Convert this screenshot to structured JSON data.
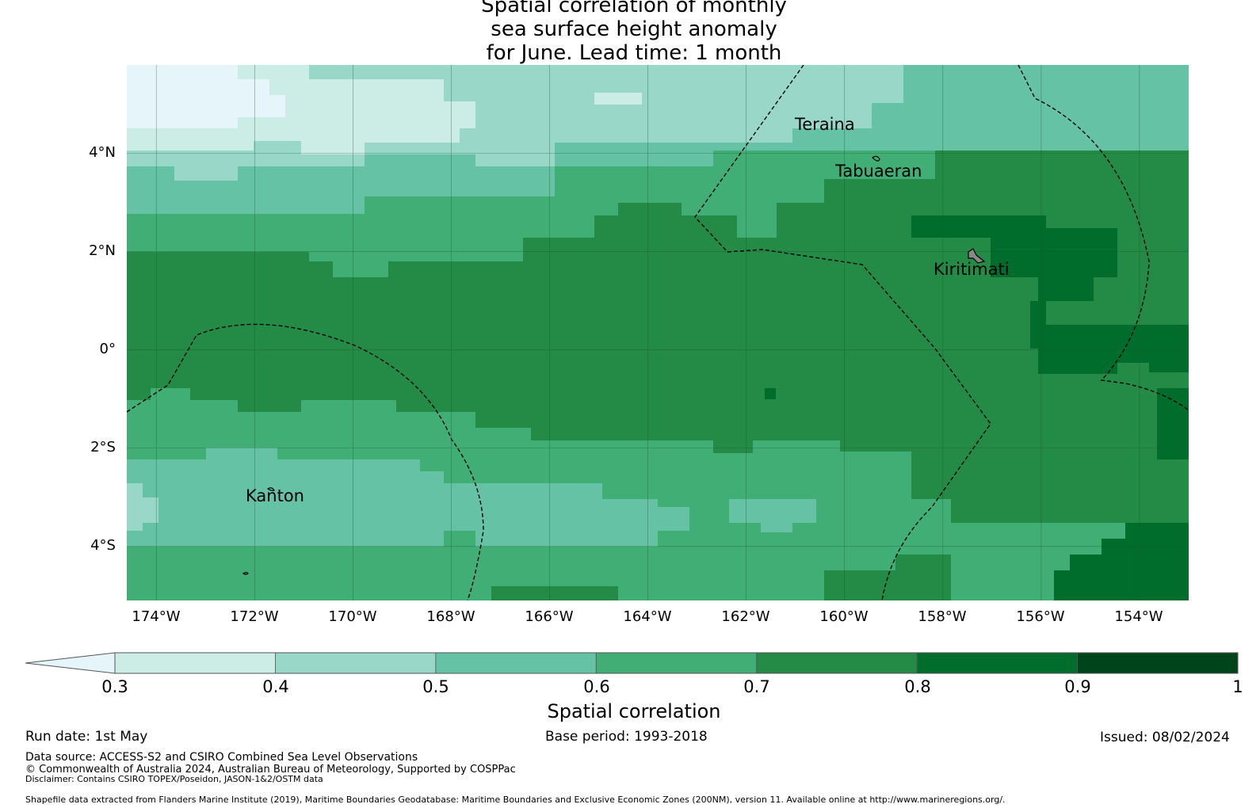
{
  "title": {
    "line1": "Spatial correlation of monthly",
    "line2": "sea surface height anomaly",
    "line3": "for June. Lead time: 1 month"
  },
  "map": {
    "lon_range": [
      -174.6,
      -153.0
    ],
    "lat_range": [
      -5.1,
      5.8
    ],
    "lat_ticks": [
      "4°N",
      "2°N",
      "0°",
      "2°S",
      "4°S"
    ],
    "lon_ticks": [
      "174°W",
      "172°W",
      "170°W",
      "168°W",
      "166°W",
      "164°W",
      "162°W",
      "160°W",
      "158°W",
      "156°W",
      "154°W"
    ],
    "places": [
      "Teraina",
      "Tabuaeran",
      "Kiritimati",
      "Kanton"
    ],
    "grid": true
  },
  "colorbar": {
    "label": "Spatial correlation",
    "ticks": [
      "0.3",
      "0.4",
      "0.5",
      "0.6",
      "0.7",
      "0.8",
      "0.9",
      "1"
    ],
    "colors": [
      "#e5f5f9",
      "#ccece6",
      "#99d8c9",
      "#66c2a4",
      "#41ae76",
      "#238b45",
      "#006d2c",
      "#00441b"
    ],
    "extend": "min"
  },
  "footer": {
    "run_date": "Run date: 1st May",
    "base_period": "Base period: 1993-2018",
    "issued": "Issued: 08/02/2024",
    "data_source": "Data source: ACCESS-S2 and CSIRO Combined Sea Level Observations",
    "copyright": "© Commonwealth of Australia 2024, Australian Bureau of Meteorology, Supported by COSPPac",
    "disclaimer": "Disclaimer: Contains CSIRO TOPEX/Poseidon, JASON-1&2/OSTM data",
    "shapefile": "Shapefile data extracted from Flanders Marine Institute (2019), Maritime Boundaries Geodatabase: Maritime Boundaries and Exclusive Economic Zones (200NM), version 11. Available online at http://www.marineregions.org/."
  }
}
